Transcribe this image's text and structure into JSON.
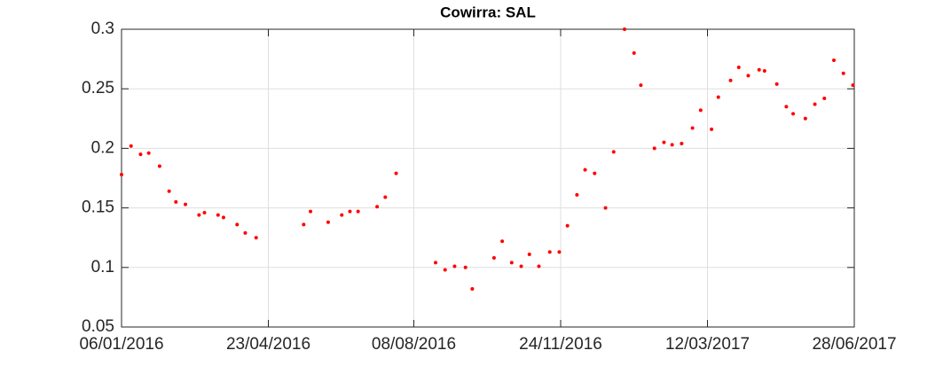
{
  "chart_data": {
    "type": "scatter",
    "title": "Cowirra: SAL",
    "x": [
      "2016-01-06",
      "2016-01-13",
      "2016-01-20",
      "2016-01-26",
      "2016-02-03",
      "2016-02-10",
      "2016-02-15",
      "2016-02-22",
      "2016-03-03",
      "2016-03-07",
      "2016-03-17",
      "2016-03-21",
      "2016-03-31",
      "2016-04-06",
      "2016-04-14",
      "2016-05-19",
      "2016-05-24",
      "2016-06-06",
      "2016-06-16",
      "2016-06-22",
      "2016-06-28",
      "2016-07-12",
      "2016-07-18",
      "2016-07-26",
      "2016-08-24",
      "2016-08-31",
      "2016-09-07",
      "2016-09-15",
      "2016-09-20",
      "2016-10-06",
      "2016-10-12",
      "2016-10-19",
      "2016-10-26",
      "2016-11-01",
      "2016-11-08",
      "2016-11-16",
      "2016-11-23",
      "2016-11-29",
      "2016-12-06",
      "2016-12-12",
      "2016-12-19",
      "2016-12-27",
      "2017-01-02",
      "2017-01-10",
      "2017-01-17",
      "2017-01-22",
      "2017-02-01",
      "2017-02-08",
      "2017-02-14",
      "2017-02-21",
      "2017-03-01",
      "2017-03-07",
      "2017-03-15",
      "2017-03-20",
      "2017-03-29",
      "2017-04-04",
      "2017-04-11",
      "2017-04-19",
      "2017-04-23",
      "2017-05-02",
      "2017-05-09",
      "2017-05-14",
      "2017-05-23",
      "2017-05-30",
      "2017-06-06",
      "2017-06-13",
      "2017-06-20",
      "2017-06-27"
    ],
    "values": [
      0.178,
      0.202,
      0.195,
      0.196,
      0.185,
      0.164,
      0.155,
      0.153,
      0.144,
      0.146,
      0.144,
      0.142,
      0.136,
      0.129,
      0.125,
      0.136,
      0.147,
      0.138,
      0.144,
      0.147,
      0.147,
      0.151,
      0.159,
      0.179,
      0.104,
      0.098,
      0.101,
      0.1,
      0.082,
      0.108,
      0.122,
      0.104,
      0.101,
      0.111,
      0.101,
      0.113,
      0.113,
      0.135,
      0.161,
      0.182,
      0.179,
      0.15,
      0.197,
      0.3,
      0.28,
      0.253,
      0.2,
      0.205,
      0.203,
      0.204,
      0.217,
      0.232,
      0.216,
      0.243,
      0.257,
      0.268,
      0.261,
      0.266,
      0.265,
      0.254,
      0.235,
      0.229,
      0.225,
      0.237,
      0.242,
      0.274,
      0.263,
      0.253
    ],
    "color": "#ff0000",
    "xlim": [
      "2016-01-06",
      "2017-06-28"
    ],
    "xticks": [
      {
        "value": "2016-01-06",
        "label": "06/01/2016"
      },
      {
        "value": "2016-04-23",
        "label": "23/04/2016"
      },
      {
        "value": "2016-08-08",
        "label": "08/08/2016"
      },
      {
        "value": "2016-11-24",
        "label": "24/11/2016"
      },
      {
        "value": "2017-03-12",
        "label": "12/03/2017"
      },
      {
        "value": "2017-06-28",
        "label": "28/06/2017"
      }
    ],
    "ylim": [
      0.05,
      0.3
    ],
    "yticks": [
      0.05,
      0.1,
      0.15,
      0.2,
      0.25,
      0.3
    ],
    "grid": true
  }
}
